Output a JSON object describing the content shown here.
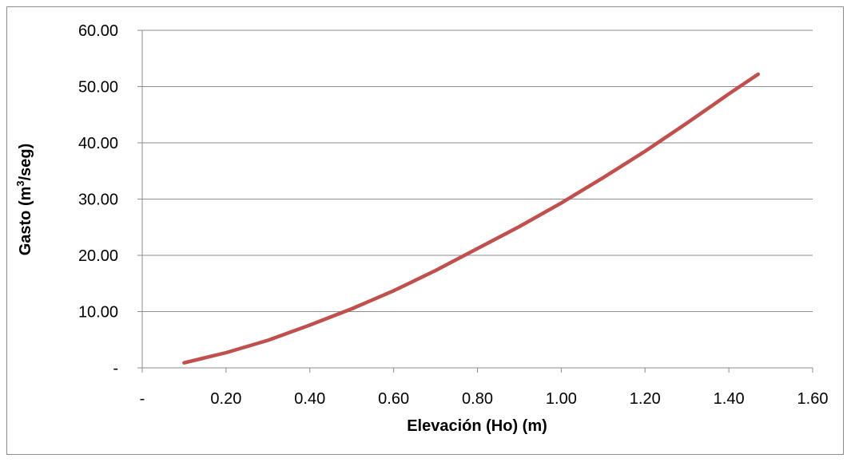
{
  "chart_data": {
    "type": "line",
    "title": "",
    "xlabel": "Elevación (Ho) (m)",
    "ylabel_parts": [
      "Gasto (m",
      "3",
      "/seg)"
    ],
    "xlim": [
      0,
      1.6
    ],
    "ylim": [
      0,
      60
    ],
    "x_ticks": [
      "-",
      "0.20",
      "0.40",
      "0.60",
      "0.80",
      "1.00",
      "1.20",
      "1.40",
      "1.60"
    ],
    "y_ticks": [
      "-",
      "10.00",
      "20.00",
      "30.00",
      "40.00",
      "50.00",
      "60.00"
    ],
    "grid": "horizontal",
    "legend": "none",
    "line_color": "#c0504d",
    "series": [
      {
        "x": [
          0.1,
          0.2,
          0.3,
          0.4,
          0.5,
          0.6,
          0.7,
          0.8,
          0.9,
          1.0,
          1.1,
          1.2,
          1.3,
          1.4,
          1.47
        ],
        "values": [
          0.9,
          2.7,
          4.9,
          7.6,
          10.5,
          13.7,
          17.3,
          21.2,
          25.1,
          29.3,
          33.8,
          38.5,
          43.5,
          48.7,
          52.2
        ]
      }
    ]
  }
}
